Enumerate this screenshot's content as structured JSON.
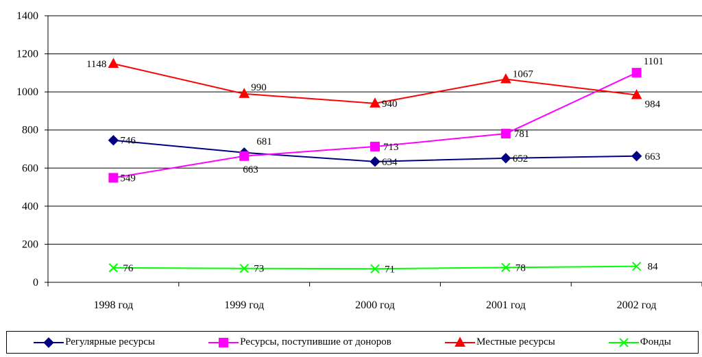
{
  "chart_data": {
    "type": "line",
    "categories": [
      "1998 год",
      "1999 год",
      "2000 год",
      "2001 год",
      "2002 год"
    ],
    "ylim": [
      0,
      1400
    ],
    "yticks": [
      "0",
      "200",
      "400",
      "600",
      "800",
      "1000",
      "1200",
      "1400"
    ],
    "grid": true,
    "legend_position": "bottom",
    "series": [
      {
        "name": "Регулярные ресурсы",
        "color": "#000080",
        "marker": "diamond",
        "values": [
          746,
          681,
          634,
          652,
          663
        ],
        "labels": [
          "746",
          "681",
          "634",
          "652",
          "663"
        ]
      },
      {
        "name": "Ресурсы, поступившие от доноров",
        "color": "#ff00ff",
        "marker": "square",
        "values": [
          549,
          663,
          713,
          781,
          1101
        ],
        "labels": [
          "549",
          "663",
          "713",
          "781",
          "1101"
        ]
      },
      {
        "name": "Местные ресурсы",
        "color": "#ff0000",
        "marker": "triangle",
        "values": [
          1148,
          990,
          940,
          1067,
          984
        ],
        "labels": [
          "1148",
          "990",
          "940",
          "1067",
          "984"
        ]
      },
      {
        "name": "Фонды",
        "color": "#00ff00",
        "marker": "x",
        "values": [
          76,
          73,
          71,
          78,
          84
        ],
        "labels": [
          "76",
          "73",
          "71",
          "78",
          "84"
        ]
      }
    ]
  }
}
